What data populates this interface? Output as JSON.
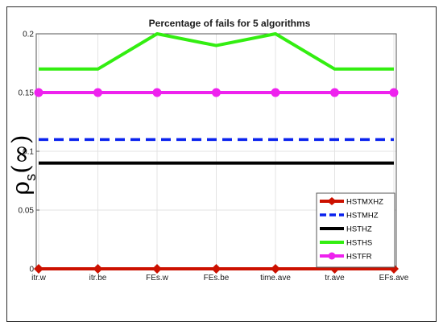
{
  "chart_data": {
    "type": "line",
    "title": "Percentage of fails for 5 algorithms",
    "xlabel": "",
    "ylabel": "ρ_s(∞)",
    "ylabel_main": "ρ",
    "ylabel_sub": "s",
    "ylabel_paren": "(∞)",
    "categories": [
      "itr.w",
      "itr.be",
      "FEs.w",
      "FEs.be",
      "time.ave",
      "tr.ave",
      "EFs.ave"
    ],
    "ylim": [
      0,
      0.2
    ],
    "yticks": [
      0,
      0.05,
      0.1,
      0.15,
      0.2
    ],
    "ytick_labels": [
      "0",
      "0.05",
      "0.1",
      "0.15",
      "0.2"
    ],
    "grid": true,
    "legend_position": "bottom-right",
    "series": [
      {
        "name": "HSTMXHZ",
        "values": [
          0,
          0,
          0,
          0,
          0,
          0,
          0
        ],
        "color": "#cc1100",
        "dash": "solid",
        "marker": "diamond-arrow"
      },
      {
        "name": "HSTMHZ",
        "values": [
          0.11,
          0.11,
          0.11,
          0.11,
          0.11,
          0.11,
          0.11
        ],
        "color": "#0a22ee",
        "dash": "dash",
        "marker": "none"
      },
      {
        "name": "HSTHZ",
        "values": [
          0.09,
          0.09,
          0.09,
          0.09,
          0.09,
          0.09,
          0.09
        ],
        "color": "#000000",
        "dash": "solid",
        "marker": "none"
      },
      {
        "name": "HSTHS",
        "values": [
          0.17,
          0.17,
          0.2,
          0.19,
          0.2,
          0.17,
          0.17
        ],
        "color": "#33ee11",
        "dash": "solid",
        "marker": "none"
      },
      {
        "name": "HSTFR",
        "values": [
          0.15,
          0.15,
          0.15,
          0.15,
          0.15,
          0.15,
          0.15
        ],
        "color": "#ee22ee",
        "dash": "solid",
        "marker": "circle"
      }
    ]
  }
}
